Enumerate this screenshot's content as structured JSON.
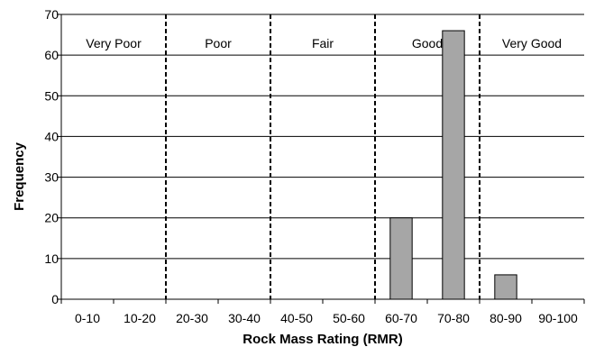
{
  "chart_data": {
    "type": "bar",
    "title": "",
    "xlabel": "Rock Mass Rating (RMR)",
    "ylabel": "Frequency",
    "categories": [
      "0-10",
      "10-20",
      "20-30",
      "30-40",
      "40-50",
      "50-60",
      "60-70",
      "70-80",
      "80-90",
      "90-100"
    ],
    "values": [
      0,
      0,
      0,
      0,
      0,
      0,
      20,
      66,
      6,
      0
    ],
    "ylim": [
      0,
      70
    ],
    "yticks": [
      0,
      10,
      20,
      30,
      40,
      50,
      60,
      70
    ],
    "grid": "horizontal",
    "bar_color": "#a6a6a6",
    "rock_classes": [
      {
        "label": "Very Poor",
        "from": 0,
        "to": 20
      },
      {
        "label": "Poor",
        "from": 20,
        "to": 40
      },
      {
        "label": "Fair",
        "from": 40,
        "to": 60
      },
      {
        "label": "Good",
        "from": 60,
        "to": 80
      },
      {
        "label": "Very Good",
        "from": 80,
        "to": 100
      }
    ],
    "class_boundaries": [
      20,
      40,
      60,
      80
    ]
  }
}
